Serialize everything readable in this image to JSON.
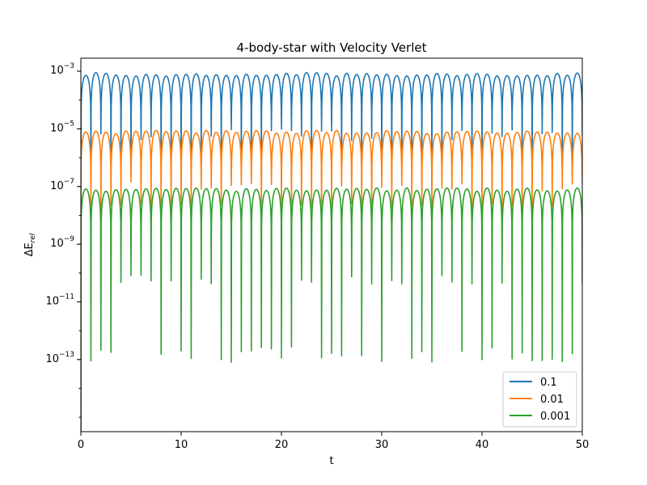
{
  "chart_data": {
    "type": "line",
    "title": "4-body-star with Velocity Verlet",
    "xlabel": "t",
    "ylabel": "ΔE_rel",
    "xlim": [
      0,
      50
    ],
    "ylim_log10": [
      -15.5,
      -2.55
    ],
    "yscale": "log",
    "xticks": [
      0,
      10,
      20,
      30,
      40,
      50
    ],
    "yticks_exponents": [
      -13,
      -11,
      -9,
      -7,
      -5,
      -3
    ],
    "grid": false,
    "legend_position": "lower-right",
    "oscillation_period": 1.0,
    "series": [
      {
        "name": "0.1",
        "color": "#1f77b4",
        "peak_log10": -3.05,
        "trough_log10": -5.0,
        "deep_trough_log10": [
          -6.0,
          -6.2
        ]
      },
      {
        "name": "0.01",
        "color": "#ff7f0e",
        "peak_log10": -5.05,
        "trough_log10": -6.8,
        "deep_trough_log10": [
          -7.6,
          -7.8
        ]
      },
      {
        "name": "0.001",
        "color": "#2ca02c",
        "peak_log10": -7.05,
        "trough_log10": -10.0,
        "deep_trough_log10": [
          -12.5,
          -13.1
        ]
      }
    ]
  }
}
